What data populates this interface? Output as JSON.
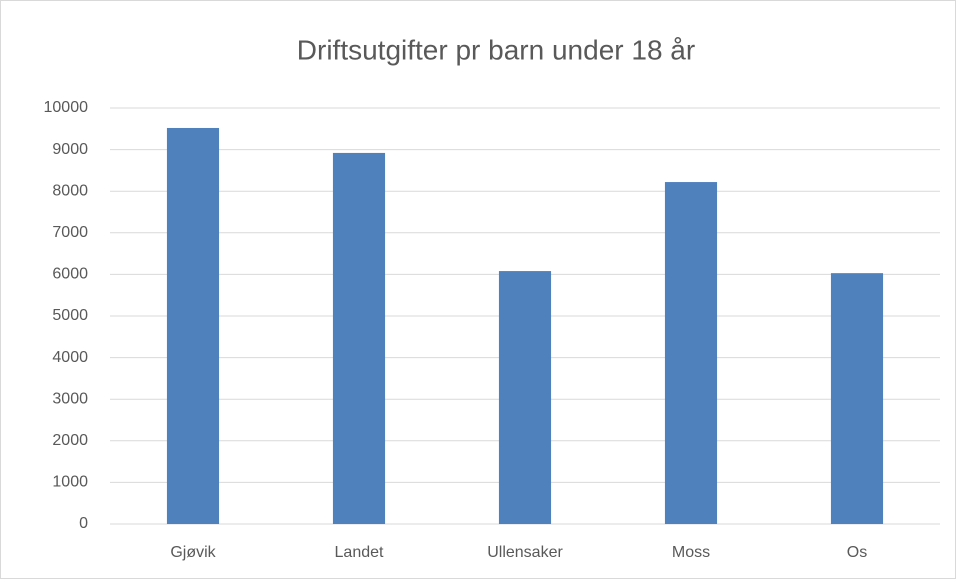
{
  "chart_data": {
    "type": "bar",
    "title": "Driftsutgifter pr barn under 18 år",
    "categories": [
      "Gjøvik",
      "Landet",
      "Ullensaker",
      "Moss",
      "Os"
    ],
    "values": [
      9520,
      8920,
      6080,
      8220,
      6030
    ],
    "color": "#4f81bd",
    "ylim": [
      0,
      10000
    ],
    "yticks": [
      0,
      1000,
      2000,
      3000,
      4000,
      5000,
      6000,
      7000,
      8000,
      9000,
      10000
    ],
    "grid": true
  }
}
